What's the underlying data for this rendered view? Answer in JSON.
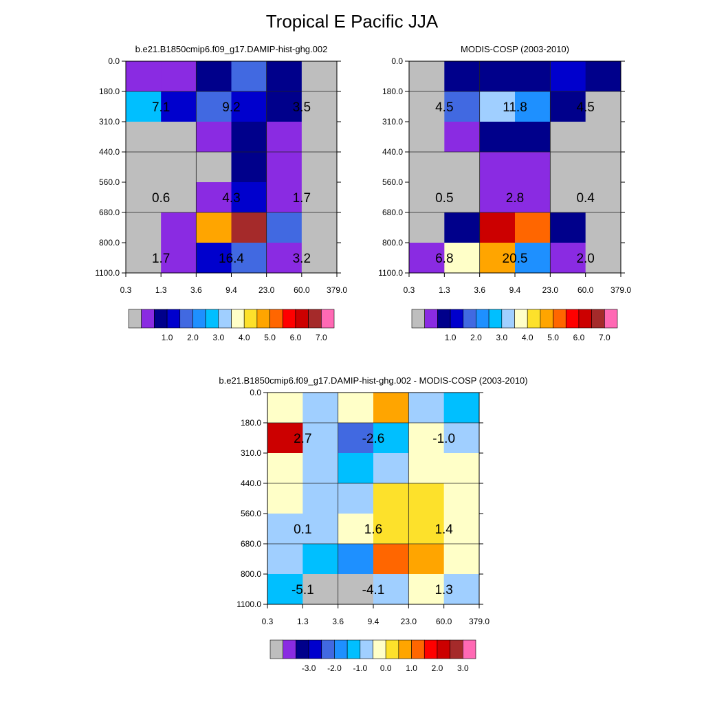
{
  "figure": {
    "title": "Tropical E Pacific JJA"
  },
  "chart_data": [
    {
      "type": "heatmap",
      "title": "b.e21.B1850cmip6.f09_g17.DAMIP-hist-ghg.002",
      "x_tick_labels": [
        "0.3",
        "1.3",
        "3.6",
        "9.4",
        "23.0",
        "60.0",
        "379.0"
      ],
      "y_tick_labels": [
        "0.0",
        "180.0",
        "310.0",
        "440.0",
        "560.0",
        "680.0",
        "800.0",
        "1100.0"
      ],
      "grid": true,
      "cell_colors": [
        [
          "#8a2be2",
          "#8a2be2",
          "#00008b",
          "#4169e1",
          "#00008b",
          "#bebebe"
        ],
        [
          "#00bfff",
          "#0000cd",
          "#4169e1",
          "#0000cd",
          "#00008b",
          "#bebebe"
        ],
        [
          "#bebebe",
          "#bebebe",
          "#8a2be2",
          "#00008b",
          "#8a2be2",
          "#bebebe"
        ],
        [
          "#bebebe",
          "#bebebe",
          "#bebebe",
          "#00008b",
          "#8a2be2",
          "#bebebe"
        ],
        [
          "#bebebe",
          "#bebebe",
          "#8a2be2",
          "#0000cd",
          "#8a2be2",
          "#bebebe"
        ],
        [
          "#bebebe",
          "#8a2be2",
          "#ffa500",
          "#a52a2a",
          "#4169e1",
          "#bebebe"
        ],
        [
          "#bebebe",
          "#8a2be2",
          "#0000cd",
          "#4169e1",
          "#8a2be2",
          "#bebebe"
        ]
      ],
      "annotations": [
        {
          "col": 1,
          "row": 1,
          "text": "7.1"
        },
        {
          "col": 3,
          "row": 1,
          "text": "9.2"
        },
        {
          "col": 5,
          "row": 1,
          "text": "3.5"
        },
        {
          "col": 1,
          "row": 4,
          "text": "0.6"
        },
        {
          "col": 3,
          "row": 4,
          "text": "4.3"
        },
        {
          "col": 5,
          "row": 4,
          "text": "1.7"
        },
        {
          "col": 1,
          "row": 6,
          "text": "1.7"
        },
        {
          "col": 3,
          "row": 6,
          "text": "16.4"
        },
        {
          "col": 5,
          "row": 6,
          "text": "3.2"
        }
      ],
      "colorbar": {
        "colors": [
          "#bebebe",
          "#8a2be2",
          "#00008b",
          "#0000cd",
          "#4169e1",
          "#1e90ff",
          "#00bfff",
          "#a0cfff",
          "#ffffc8",
          "#fde12b",
          "#ffa500",
          "#ff6600",
          "#ff0000",
          "#cc0000",
          "#a52a2a",
          "#ff69b4"
        ],
        "labels": [
          "1.0",
          "2.0",
          "3.0",
          "4.0",
          "5.0",
          "6.0",
          "7.0"
        ]
      }
    },
    {
      "type": "heatmap",
      "title": "MODIS-COSP (2003-2010)",
      "x_tick_labels": [
        "0.3",
        "1.3",
        "3.6",
        "9.4",
        "23.0",
        "60.0",
        "379.0"
      ],
      "y_tick_labels": [
        "0.0",
        "180.0",
        "310.0",
        "440.0",
        "560.0",
        "680.0",
        "800.0",
        "1100.0"
      ],
      "grid": true,
      "cell_colors": [
        [
          "#bebebe",
          "#00008b",
          "#00008b",
          "#00008b",
          "#0000cd",
          "#00008b"
        ],
        [
          "#bebebe",
          "#4169e1",
          "#a0cfff",
          "#1e90ff",
          "#00008b",
          "#bebebe"
        ],
        [
          "#bebebe",
          "#8a2be2",
          "#00008b",
          "#00008b",
          "#bebebe",
          "#bebebe"
        ],
        [
          "#bebebe",
          "#bebebe",
          "#8a2be2",
          "#8a2be2",
          "#bebebe",
          "#bebebe"
        ],
        [
          "#bebebe",
          "#bebebe",
          "#8a2be2",
          "#8a2be2",
          "#bebebe",
          "#bebebe"
        ],
        [
          "#bebebe",
          "#00008b",
          "#cc0000",
          "#ff6600",
          "#00008b",
          "#bebebe"
        ],
        [
          "#8a2be2",
          "#ffffc8",
          "#ffa500",
          "#1e90ff",
          "#8a2be2",
          "#bebebe"
        ]
      ],
      "annotations": [
        {
          "col": 1,
          "row": 1,
          "text": "4.5"
        },
        {
          "col": 3,
          "row": 1,
          "text": "11.8"
        },
        {
          "col": 5,
          "row": 1,
          "text": "4.5"
        },
        {
          "col": 1,
          "row": 4,
          "text": "0.5"
        },
        {
          "col": 3,
          "row": 4,
          "text": "2.8"
        },
        {
          "col": 5,
          "row": 4,
          "text": "0.4"
        },
        {
          "col": 1,
          "row": 6,
          "text": "6.8"
        },
        {
          "col": 3,
          "row": 6,
          "text": "20.5"
        },
        {
          "col": 5,
          "row": 6,
          "text": "2.0"
        }
      ],
      "colorbar": {
        "colors": [
          "#bebebe",
          "#8a2be2",
          "#00008b",
          "#0000cd",
          "#4169e1",
          "#1e90ff",
          "#00bfff",
          "#a0cfff",
          "#ffffc8",
          "#fde12b",
          "#ffa500",
          "#ff6600",
          "#ff0000",
          "#cc0000",
          "#a52a2a",
          "#ff69b4"
        ],
        "labels": [
          "1.0",
          "2.0",
          "3.0",
          "4.0",
          "5.0",
          "6.0",
          "7.0"
        ]
      }
    },
    {
      "type": "heatmap",
      "title": "b.e21.B1850cmip6.f09_g17.DAMIP-hist-ghg.002 - MODIS-COSP (2003-2010)",
      "x_tick_labels": [
        "0.3",
        "1.3",
        "3.6",
        "9.4",
        "23.0",
        "60.0",
        "379.0"
      ],
      "y_tick_labels": [
        "0.0",
        "180.0",
        "310.0",
        "440.0",
        "560.0",
        "680.0",
        "800.0",
        "1100.0"
      ],
      "grid": true,
      "cell_colors": [
        [
          "#ffffc8",
          "#a0cfff",
          "#ffffc8",
          "#ffa500",
          "#a0cfff",
          "#00bfff"
        ],
        [
          "#cc0000",
          "#a0cfff",
          "#4169e1",
          "#00bfff",
          "#ffffc8",
          "#a0cfff"
        ],
        [
          "#ffffc8",
          "#a0cfff",
          "#00bfff",
          "#a0cfff",
          "#ffffc8",
          "#ffffc8"
        ],
        [
          "#ffffc8",
          "#a0cfff",
          "#a0cfff",
          "#fde12b",
          "#fde12b",
          "#ffffc8"
        ],
        [
          "#a0cfff",
          "#a0cfff",
          "#ffffc8",
          "#fde12b",
          "#fde12b",
          "#ffffc8"
        ],
        [
          "#a0cfff",
          "#00bfff",
          "#1e90ff",
          "#ff6600",
          "#ffa500",
          "#ffffc8"
        ],
        [
          "#00bfff",
          "#bebebe",
          "#bebebe",
          "#a0cfff",
          "#ffffc8",
          "#a0cfff"
        ]
      ],
      "annotations": [
        {
          "col": 1,
          "row": 1,
          "text": "2.7"
        },
        {
          "col": 3,
          "row": 1,
          "text": "-2.6"
        },
        {
          "col": 5,
          "row": 1,
          "text": "-1.0"
        },
        {
          "col": 1,
          "row": 4,
          "text": "0.1"
        },
        {
          "col": 3,
          "row": 4,
          "text": "1.6"
        },
        {
          "col": 5,
          "row": 4,
          "text": "1.4"
        },
        {
          "col": 1,
          "row": 6,
          "text": "-5.1"
        },
        {
          "col": 3,
          "row": 6,
          "text": "-4.1"
        },
        {
          "col": 5,
          "row": 6,
          "text": "1.3"
        }
      ],
      "colorbar": {
        "colors": [
          "#bebebe",
          "#8a2be2",
          "#00008b",
          "#0000cd",
          "#4169e1",
          "#1e90ff",
          "#00bfff",
          "#a0cfff",
          "#ffffc8",
          "#fde12b",
          "#ffa500",
          "#ff6600",
          "#ff0000",
          "#cc0000",
          "#a52a2a",
          "#ff69b4"
        ],
        "labels": [
          "-3.0",
          "-2.0",
          "-1.0",
          "0.0",
          "1.0",
          "2.0",
          "3.0"
        ]
      }
    }
  ]
}
